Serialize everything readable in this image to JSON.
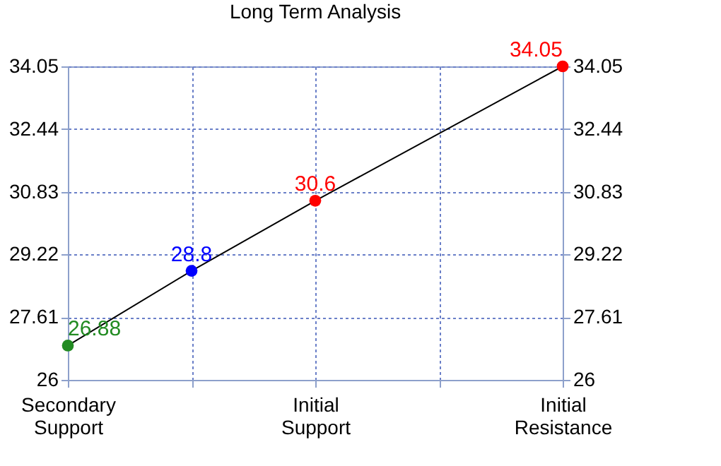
{
  "chart_data": {
    "type": "line",
    "title": "Long Term Analysis",
    "categories": [
      "Secondary Support",
      null,
      "Initial Support",
      null,
      "Initial Resistance"
    ],
    "series": [
      {
        "color": "#000000",
        "colors": [
          "#228b22",
          "#0000ff",
          "#ff0000",
          null,
          "#ff0000"
        ],
        "values": [
          26.88,
          28.8,
          30.6,
          null,
          34.05
        ]
      }
    ],
    "ylim": [
      26,
      34.05
    ],
    "yticks": [
      26,
      27.61,
      29.22,
      30.83,
      32.44,
      34.05
    ],
    "y2lim": [
      26,
      34.05
    ],
    "y2ticks": [
      26,
      27.61,
      29.22,
      30.83,
      32.44,
      34.05
    ],
    "grid": true,
    "marker": "circle",
    "line_style": "solid",
    "data_labels": true
  }
}
